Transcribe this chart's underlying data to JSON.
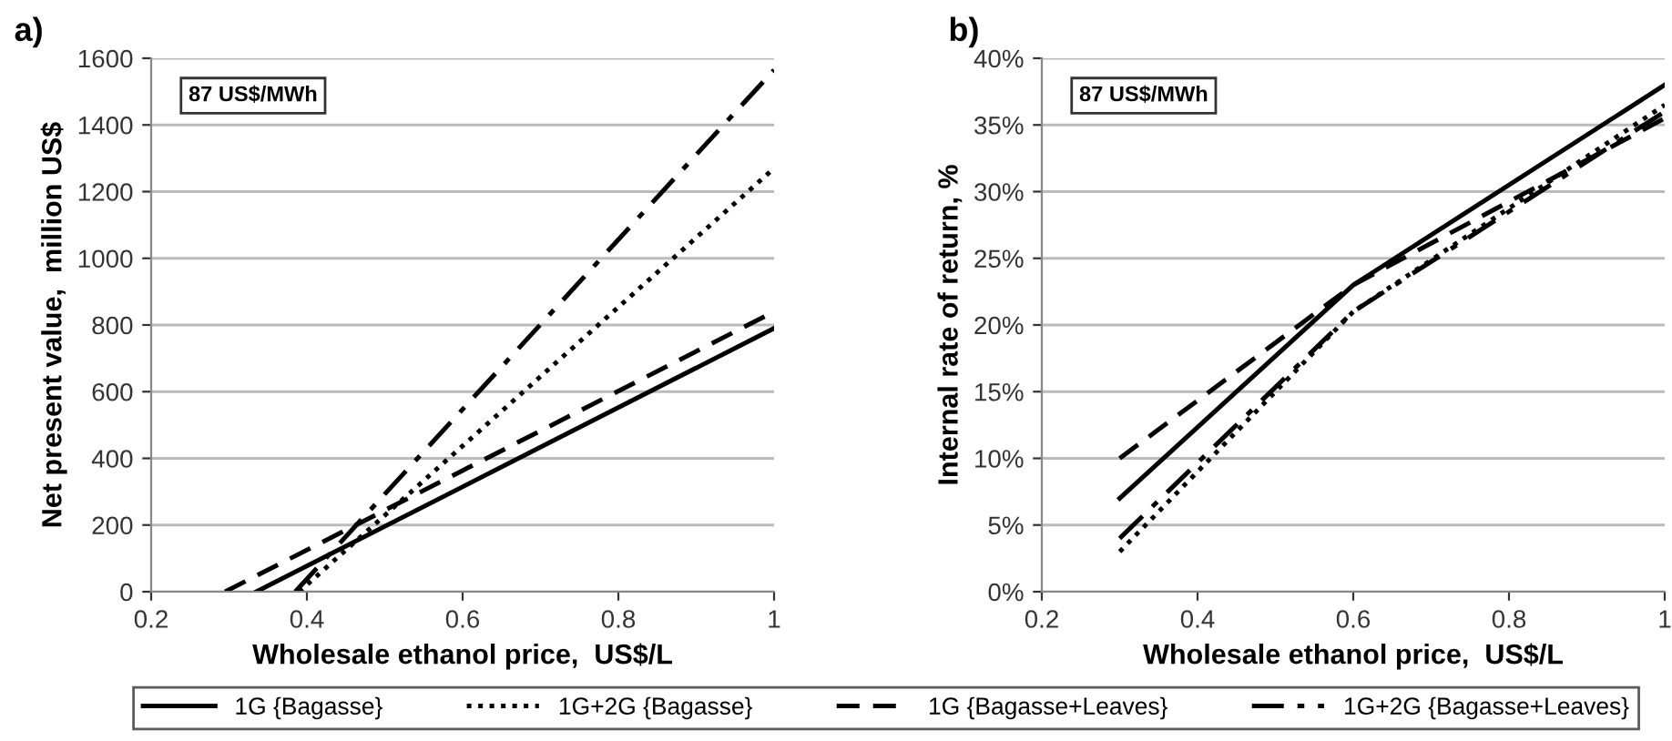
{
  "chart_data": [
    {
      "type": "line",
      "title": "a)",
      "xlabel": "Wholesale ethanol price,  US$/L",
      "ylabel": "Net present value,  million US$",
      "annotations": [
        "87 US$/MWh"
      ],
      "xlim": [
        0.2,
        1
      ],
      "xticks": [
        0.2,
        0.4,
        0.6,
        0.8,
        1
      ],
      "ylim": [
        0,
        1600
      ],
      "yticks": [
        0,
        200,
        400,
        600,
        800,
        1000,
        1200,
        1400,
        1600
      ],
      "grid": "y",
      "legend": "bottom",
      "series": [
        {
          "name": "1G {Bagasse}",
          "color": "#000000",
          "line_style": "solid",
          "x": [
            0.335,
            1
          ],
          "values": [
            0,
            790
          ]
        },
        {
          "name": "1G+2G {Bagasse}",
          "color": "#000000",
          "line_style": "dotted",
          "x": [
            0.39,
            1
          ],
          "values": [
            0,
            1270
          ]
        },
        {
          "name": "1G {Bagasse+Leaves}",
          "color": "#000000",
          "line_style": "dashed",
          "x": [
            0.295,
            1
          ],
          "values": [
            0,
            840
          ]
        },
        {
          "name": "1G+2G {Bagasse+Leaves}",
          "color": "#000000",
          "line_style": "dashdot",
          "x": [
            0.385,
            1
          ],
          "values": [
            0,
            1565
          ]
        }
      ]
    },
    {
      "type": "line",
      "title": "b)",
      "xlabel": "Wholesale ethanol price,  US$/L",
      "ylabel": "Internal rate of return, %",
      "annotations": [
        "87 US$/MWh"
      ],
      "xlim": [
        0.2,
        1
      ],
      "xticks": [
        0.2,
        0.4,
        0.6,
        0.8,
        1
      ],
      "ylim": [
        0,
        40
      ],
      "yticks": [
        {
          "value": 0,
          "label": "0%"
        },
        {
          "value": 5,
          "label": "5%"
        },
        {
          "value": 10,
          "label": "10%"
        },
        {
          "value": 15,
          "label": "15%"
        },
        {
          "value": 20,
          "label": "20%"
        },
        {
          "value": 25,
          "label": "25%"
        },
        {
          "value": 30,
          "label": "30%"
        },
        {
          "value": 35,
          "label": "35%"
        },
        {
          "value": 40,
          "label": "40%"
        }
      ],
      "grid": "y",
      "series": [
        {
          "color": "#000000",
          "line_style": "solid",
          "x": [
            0.3,
            0.6,
            1
          ],
          "values": [
            7,
            23,
            38
          ]
        },
        {
          "color": "#000000",
          "line_style": "dotted",
          "x": [
            0.3,
            0.6,
            1
          ],
          "values": [
            3,
            21,
            36.5
          ]
        },
        {
          "color": "#000000",
          "line_style": "dashed",
          "x": [
            0.3,
            0.6,
            1
          ],
          "values": [
            10,
            23,
            35.5
          ]
        },
        {
          "color": "#000000",
          "line_style": "dashdot",
          "x": [
            0.3,
            0.6,
            1
          ],
          "values": [
            4,
            21,
            36
          ]
        }
      ]
    }
  ]
}
